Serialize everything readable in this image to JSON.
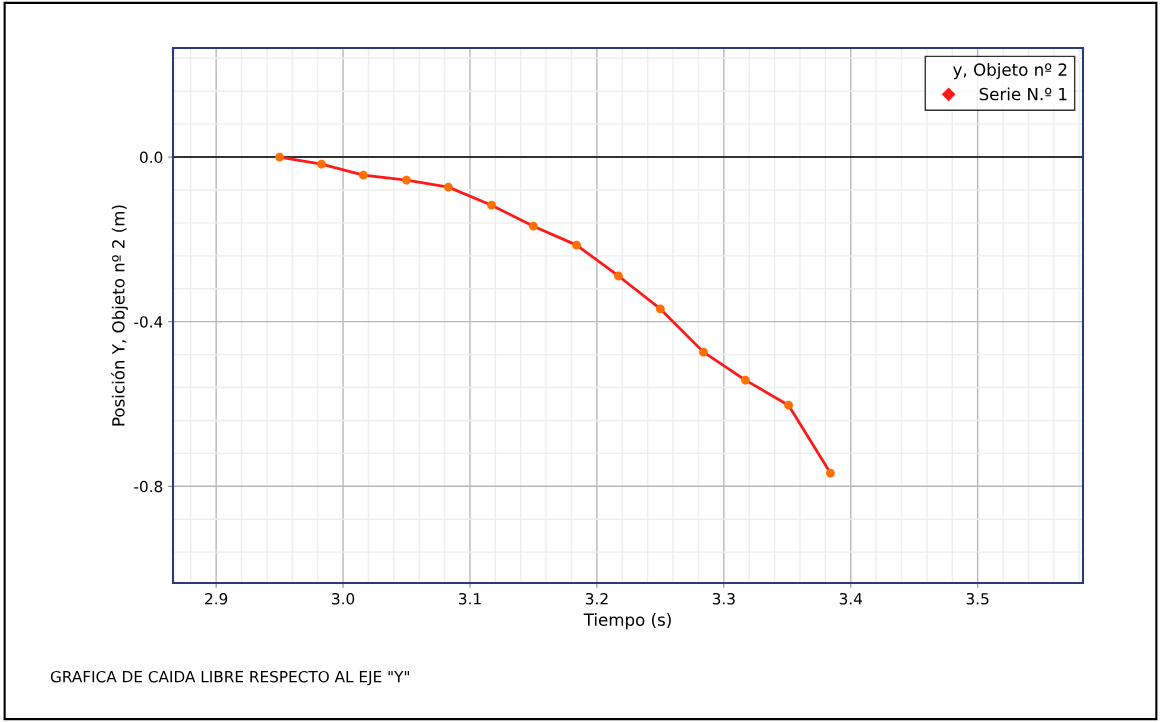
{
  "chart_data": {
    "type": "line",
    "xlabel": "Tiempo (s)",
    "ylabel": "Posición Y, Objeto nº 2 (m)",
    "legend_title": "y, Objeto nº 2",
    "x": [
      2.95,
      2.983,
      3.016,
      3.05,
      3.083,
      3.117,
      3.15,
      3.184,
      3.217,
      3.25,
      3.284,
      3.317,
      3.351,
      3.384
    ],
    "series": [
      {
        "name": "Serie N.º 1",
        "color": "#ff1a1a",
        "colors": [
          "#ff7000",
          "#ff7000",
          "#ff7000",
          "#ff7000",
          "#ff7000",
          "#ff7000",
          "#ff7000",
          "#ff7000",
          "#ff7000",
          "#ff7000",
          "#ff7000",
          "#ff7000",
          "#ff7000",
          "#ff7000"
        ],
        "values": [
          0.0,
          -0.017,
          -0.044,
          -0.056,
          -0.073,
          -0.117,
          -0.168,
          -0.214,
          -0.289,
          -0.369,
          -0.474,
          -0.542,
          -0.603,
          -0.768
        ]
      }
    ],
    "xlim": [
      2.866,
      3.583
    ],
    "ylim": [
      -1.035,
      0.265
    ],
    "xticks": [
      {
        "value": 2.9,
        "label": "2.9"
      },
      {
        "value": 3.0,
        "label": "3.0"
      },
      {
        "value": 3.1,
        "label": "3.1"
      },
      {
        "value": 3.2,
        "label": "3.2"
      },
      {
        "value": 3.3,
        "label": "3.3"
      },
      {
        "value": 3.4,
        "label": "3.4"
      },
      {
        "value": 3.5,
        "label": "3.5"
      }
    ],
    "yticks": [
      {
        "value": 0,
        "label": "0.0"
      },
      {
        "value": -0.4,
        "label": "-0.4"
      },
      {
        "value": -0.8,
        "label": "-0.8"
      }
    ],
    "ref_lines": [
      {
        "axis": "y",
        "value": 0,
        "color": "#000000"
      }
    ],
    "grid": true,
    "legend": "top right",
    "marker": "circle",
    "line_style": "solid",
    "annotations": [
      "GRAFICA DE CAIDA LIBRE RESPECTO AL EJE \"Y\""
    ]
  }
}
